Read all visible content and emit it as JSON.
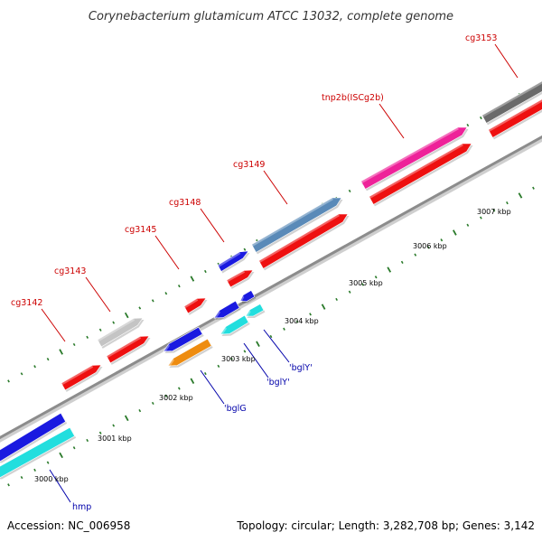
{
  "title": "Corynebacterium glutamicum ATCC 13032, complete genome",
  "footer": {
    "accession": "Accession: NC_006958",
    "summary": "Topology: circular; Length: 3,282,708 bp; Genes: 3,142"
  },
  "colors": {
    "background": "#ffffff",
    "backbone": "#8c8c8c",
    "tick": "#2a7a2a",
    "label_red": "#cc0000",
    "label_blue": "#0000aa",
    "red": "#ee1010",
    "blue": "#1a1ae0",
    "cyan": "#22dede",
    "steelblue": "#5a8ab8",
    "magenta": "#ee2299",
    "gray": "#c4c4c4",
    "darkgray": "#6a6a6a",
    "orange": "#ee8c10"
  },
  "ticks": [
    "3000 kbp",
    "3001 kbp",
    "3002 kbp",
    "3003 kbp",
    "3004 kbp",
    "3005 kbp",
    "3006 kbp",
    "3007 kbp"
  ],
  "genes": [
    {
      "id": "red-3142-area",
      "label": "cg3142",
      "color": "red",
      "strand": "forward"
    },
    {
      "id": "gray-3143",
      "label": "cg3143",
      "color": "gray",
      "strand": "forward"
    },
    {
      "id": "red-3143",
      "label": "",
      "color": "red",
      "strand": "forward"
    },
    {
      "id": "red-3145",
      "label": "cg3145",
      "color": "red",
      "strand": "forward"
    },
    {
      "id": "navy-3148",
      "label": "cg3148",
      "color": "blue",
      "strand": "forward"
    },
    {
      "id": "red-3148",
      "label": "",
      "color": "red",
      "strand": "forward"
    },
    {
      "id": "steel-3149",
      "label": "cg3149",
      "color": "steelblue",
      "strand": "forward"
    },
    {
      "id": "red-3149",
      "label": "",
      "color": "red",
      "strand": "forward"
    },
    {
      "id": "magenta-tnp2b",
      "label": "tnp2b(ISCg2b)",
      "color": "magenta",
      "strand": "forward"
    },
    {
      "id": "red-tnp2b",
      "label": "",
      "color": "red",
      "strand": "forward"
    },
    {
      "id": "darkgray-3153",
      "label": "cg3153",
      "color": "darkgray",
      "strand": "forward"
    },
    {
      "id": "red-3153",
      "label": "",
      "color": "red",
      "strand": "forward"
    },
    {
      "id": "blue-hmp",
      "label": "",
      "color": "blue",
      "strand": "reverse"
    },
    {
      "id": "cyan-hmp",
      "label": "hmp",
      "color": "cyan",
      "strand": "reverse"
    },
    {
      "id": "blue-bglG",
      "label": "",
      "color": "blue",
      "strand": "reverse"
    },
    {
      "id": "orange-bglG",
      "label": "'bglG",
      "color": "orange",
      "strand": "reverse"
    },
    {
      "id": "blue-bglY1",
      "label": "",
      "color": "blue",
      "strand": "reverse"
    },
    {
      "id": "cyan-bglY1",
      "label": "'bglY'",
      "color": "cyan",
      "strand": "reverse"
    },
    {
      "id": "blue-bglY2",
      "label": "",
      "color": "blue",
      "strand": "reverse"
    },
    {
      "id": "cyan-bglY2",
      "label": "'bglY'",
      "color": "cyan",
      "strand": "reverse"
    }
  ]
}
